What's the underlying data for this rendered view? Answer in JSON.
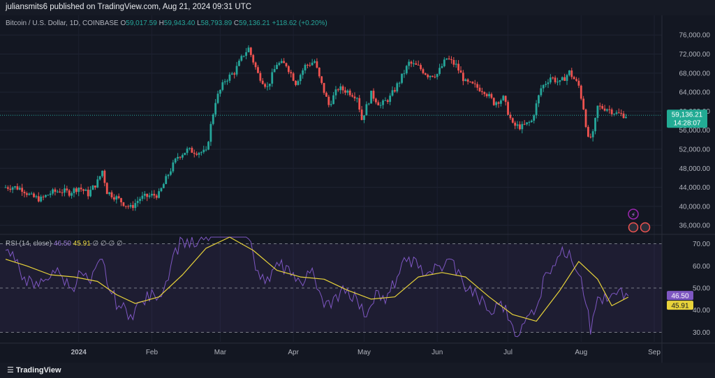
{
  "header": {
    "published": "juliansmits6 published on TradingView.com, Aug 21, 2024 09:31 UTC"
  },
  "legend": {
    "symbol": "Bitcoin / U.S. Dollar, 1D, COINBASE",
    "o_label": "O",
    "o": "59,017.59",
    "h_label": "H",
    "h": "59,943.40",
    "l_label": "L",
    "l": "58,793.89",
    "c_label": "C",
    "c": "59,136.21",
    "change": "+118.62 (+0.20%)"
  },
  "rsi_legend": {
    "name": "RSI (14, close)",
    "rsi": "46.50",
    "ma": "45.91",
    "extras": "∅ ∅ ∅ ∅"
  },
  "price_tag": {
    "value": "59,136.21",
    "countdown": "14:28:07"
  },
  "rsi_tags": {
    "rsi": "46.50",
    "ma": "45.91"
  },
  "footer": {
    "brand": "TradingView"
  },
  "colors": {
    "up": "#26a69a",
    "down": "#ef5350",
    "rsi": "#7e57c2",
    "rsi_ma": "#e8d33a",
    "bg": "#131722"
  },
  "chart_data": [
    {
      "type": "candlestick",
      "title": "Bitcoin / U.S. Dollar, 1D, COINBASE",
      "x_ticks": [
        "2024",
        "Feb",
        "Mar",
        "Apr",
        "May",
        "Jun",
        "Jul",
        "Aug",
        "Sep"
      ],
      "y_ticks": [
        "36,000.00",
        "40,000.00",
        "44,000.00",
        "48,000.00",
        "52,000.00",
        "56,000.00",
        "60,000.00",
        "64,000.00",
        "68,000.00",
        "72,000.00",
        "76,000.00"
      ],
      "ylim": [
        35000,
        77500
      ],
      "last_close": 59136.21,
      "close_series": [
        {
          "date": "2023-12-01",
          "close": 44000
        },
        {
          "date": "2023-12-05",
          "close": 44100
        },
        {
          "date": "2023-12-09",
          "close": 43700
        },
        {
          "date": "2023-12-13",
          "close": 42000
        },
        {
          "date": "2023-12-17",
          "close": 41500
        },
        {
          "date": "2023-12-21",
          "close": 42800
        },
        {
          "date": "2023-12-25",
          "close": 43300
        },
        {
          "date": "2023-12-29",
          "close": 42900
        },
        {
          "date": "2024-01-02",
          "close": 44000
        },
        {
          "date": "2024-01-06",
          "close": 42600
        },
        {
          "date": "2024-01-10",
          "close": 45200
        },
        {
          "date": "2024-01-12",
          "close": 47500
        },
        {
          "date": "2024-01-14",
          "close": 43100
        },
        {
          "date": "2024-01-18",
          "close": 41800
        },
        {
          "date": "2024-01-22",
          "close": 40300
        },
        {
          "date": "2024-01-24",
          "close": 39700
        },
        {
          "date": "2024-01-28",
          "close": 41700
        },
        {
          "date": "2024-02-01",
          "close": 42200
        },
        {
          "date": "2024-02-05",
          "close": 42500
        },
        {
          "date": "2024-02-09",
          "close": 46800
        },
        {
          "date": "2024-02-13",
          "close": 50500
        },
        {
          "date": "2024-02-17",
          "close": 51800
        },
        {
          "date": "2024-02-21",
          "close": 51500
        },
        {
          "date": "2024-02-25",
          "close": 51300
        },
        {
          "date": "2024-02-27",
          "close": 57000
        },
        {
          "date": "2024-02-29",
          "close": 62200
        },
        {
          "date": "2024-03-04",
          "close": 66500
        },
        {
          "date": "2024-03-08",
          "close": 68200
        },
        {
          "date": "2024-03-12",
          "close": 72000
        },
        {
          "date": "2024-03-14",
          "close": 73200
        },
        {
          "date": "2024-03-18",
          "close": 67800
        },
        {
          "date": "2024-03-22",
          "close": 65000
        },
        {
          "date": "2024-03-26",
          "close": 70000
        },
        {
          "date": "2024-03-30",
          "close": 69800
        },
        {
          "date": "2024-04-03",
          "close": 66000
        },
        {
          "date": "2024-04-07",
          "close": 69500
        },
        {
          "date": "2024-04-11",
          "close": 70500
        },
        {
          "date": "2024-04-13",
          "close": 67000
        },
        {
          "date": "2024-04-17",
          "close": 61300
        },
        {
          "date": "2024-04-21",
          "close": 64800
        },
        {
          "date": "2024-04-25",
          "close": 64200
        },
        {
          "date": "2024-04-29",
          "close": 63100
        },
        {
          "date": "2024-05-01",
          "close": 58300
        },
        {
          "date": "2024-05-05",
          "close": 63600
        },
        {
          "date": "2024-05-09",
          "close": 61200
        },
        {
          "date": "2024-05-13",
          "close": 62900
        },
        {
          "date": "2024-05-17",
          "close": 66300
        },
        {
          "date": "2024-05-21",
          "close": 70100
        },
        {
          "date": "2024-05-25",
          "close": 69300
        },
        {
          "date": "2024-05-29",
          "close": 67600
        },
        {
          "date": "2024-06-02",
          "close": 67800
        },
        {
          "date": "2024-06-06",
          "close": 71100
        },
        {
          "date": "2024-06-10",
          "close": 69600
        },
        {
          "date": "2024-06-14",
          "close": 66000
        },
        {
          "date": "2024-06-18",
          "close": 65200
        },
        {
          "date": "2024-06-22",
          "close": 64300
        },
        {
          "date": "2024-06-26",
          "close": 61800
        },
        {
          "date": "2024-06-30",
          "close": 62700
        },
        {
          "date": "2024-07-04",
          "close": 57000
        },
        {
          "date": "2024-07-08",
          "close": 56700
        },
        {
          "date": "2024-07-12",
          "close": 57900
        },
        {
          "date": "2024-07-16",
          "close": 64800
        },
        {
          "date": "2024-07-20",
          "close": 67200
        },
        {
          "date": "2024-07-24",
          "close": 65900
        },
        {
          "date": "2024-07-28",
          "close": 68200
        },
        {
          "date": "2024-08-01",
          "close": 65300
        },
        {
          "date": "2024-08-03",
          "close": 60700
        },
        {
          "date": "2024-08-05",
          "close": 54000
        },
        {
          "date": "2024-08-07",
          "close": 55100
        },
        {
          "date": "2024-08-09",
          "close": 60900
        },
        {
          "date": "2024-08-13",
          "close": 60600
        },
        {
          "date": "2024-08-17",
          "close": 59500
        },
        {
          "date": "2024-08-21",
          "close": 59136
        }
      ]
    },
    {
      "type": "line",
      "title": "RSI (14, close)",
      "y_ticks": [
        "30.00",
        "40.00",
        "50.00",
        "60.00",
        "70.00"
      ],
      "ylim": [
        27,
        73
      ],
      "bands": [
        30,
        50,
        70
      ],
      "series": [
        {
          "name": "RSI",
          "values": [
            {
              "date": "2023-12-01",
              "v": 67
            },
            {
              "date": "2023-12-05",
              "v": 62
            },
            {
              "date": "2023-12-09",
              "v": 55
            },
            {
              "date": "2023-12-13",
              "v": 50
            },
            {
              "date": "2023-12-17",
              "v": 53
            },
            {
              "date": "2023-12-21",
              "v": 58
            },
            {
              "date": "2023-12-25",
              "v": 55
            },
            {
              "date": "2023-12-29",
              "v": 50
            },
            {
              "date": "2024-01-02",
              "v": 57
            },
            {
              "date": "2024-01-06",
              "v": 52
            },
            {
              "date": "2024-01-11",
              "v": 63
            },
            {
              "date": "2024-01-14",
              "v": 49
            },
            {
              "date": "2024-01-18",
              "v": 42
            },
            {
              "date": "2024-01-23",
              "v": 38
            },
            {
              "date": "2024-01-28",
              "v": 44
            },
            {
              "date": "2024-02-02",
              "v": 47
            },
            {
              "date": "2024-02-06",
              "v": 49
            },
            {
              "date": "2024-02-10",
              "v": 65
            },
            {
              "date": "2024-02-14",
              "v": 72
            },
            {
              "date": "2024-02-20",
              "v": 69
            },
            {
              "date": "2024-02-26",
              "v": 74
            },
            {
              "date": "2024-03-05",
              "v": 78
            },
            {
              "date": "2024-03-12",
              "v": 80
            },
            {
              "date": "2024-03-16",
              "v": 58
            },
            {
              "date": "2024-03-20",
              "v": 52
            },
            {
              "date": "2024-03-26",
              "v": 60
            },
            {
              "date": "2024-04-01",
              "v": 57
            },
            {
              "date": "2024-04-05",
              "v": 51
            },
            {
              "date": "2024-04-09",
              "v": 59
            },
            {
              "date": "2024-04-13",
              "v": 46
            },
            {
              "date": "2024-04-17",
              "v": 41
            },
            {
              "date": "2024-04-22",
              "v": 51
            },
            {
              "date": "2024-04-28",
              "v": 45
            },
            {
              "date": "2024-05-01",
              "v": 37
            },
            {
              "date": "2024-05-06",
              "v": 49
            },
            {
              "date": "2024-05-10",
              "v": 43
            },
            {
              "date": "2024-05-15",
              "v": 55
            },
            {
              "date": "2024-05-20",
              "v": 64
            },
            {
              "date": "2024-05-24",
              "v": 59
            },
            {
              "date": "2024-05-28",
              "v": 57
            },
            {
              "date": "2024-06-04",
              "v": 60
            },
            {
              "date": "2024-06-07",
              "v": 63
            },
            {
              "date": "2024-06-12",
              "v": 52
            },
            {
              "date": "2024-06-18",
              "v": 46
            },
            {
              "date": "2024-06-24",
              "v": 38
            },
            {
              "date": "2024-06-28",
              "v": 44
            },
            {
              "date": "2024-07-03",
              "v": 33
            },
            {
              "date": "2024-07-06",
              "v": 29
            },
            {
              "date": "2024-07-10",
              "v": 38
            },
            {
              "date": "2024-07-14",
              "v": 44
            },
            {
              "date": "2024-07-17",
              "v": 57
            },
            {
              "date": "2024-07-22",
              "v": 64
            },
            {
              "date": "2024-07-27",
              "v": 67
            },
            {
              "date": "2024-08-01",
              "v": 55
            },
            {
              "date": "2024-08-04",
              "v": 40
            },
            {
              "date": "2024-08-05",
              "v": 29
            },
            {
              "date": "2024-08-08",
              "v": 46
            },
            {
              "date": "2024-08-12",
              "v": 44
            },
            {
              "date": "2024-08-16",
              "v": 47
            },
            {
              "date": "2024-08-21",
              "v": 46.5
            }
          ]
        },
        {
          "name": "RSI-based MA",
          "values": [
            {
              "date": "2023-12-01",
              "v": 63
            },
            {
              "date": "2023-12-10",
              "v": 60
            },
            {
              "date": "2023-12-20",
              "v": 56
            },
            {
              "date": "2023-12-30",
              "v": 55
            },
            {
              "date": "2024-01-09",
              "v": 53
            },
            {
              "date": "2024-01-17",
              "v": 47
            },
            {
              "date": "2024-01-25",
              "v": 43
            },
            {
              "date": "2024-02-04",
              "v": 46
            },
            {
              "date": "2024-02-14",
              "v": 56
            },
            {
              "date": "2024-02-24",
              "v": 68
            },
            {
              "date": "2024-03-05",
              "v": 73
            },
            {
              "date": "2024-03-15",
              "v": 67
            },
            {
              "date": "2024-03-25",
              "v": 58
            },
            {
              "date": "2024-04-04",
              "v": 55
            },
            {
              "date": "2024-04-14",
              "v": 54
            },
            {
              "date": "2024-04-24",
              "v": 49
            },
            {
              "date": "2024-05-04",
              "v": 45
            },
            {
              "date": "2024-05-14",
              "v": 46
            },
            {
              "date": "2024-05-24",
              "v": 55
            },
            {
              "date": "2024-06-03",
              "v": 57
            },
            {
              "date": "2024-06-13",
              "v": 55
            },
            {
              "date": "2024-06-23",
              "v": 46
            },
            {
              "date": "2024-07-03",
              "v": 38
            },
            {
              "date": "2024-07-13",
              "v": 35
            },
            {
              "date": "2024-07-23",
              "v": 49
            },
            {
              "date": "2024-07-31",
              "v": 62
            },
            {
              "date": "2024-08-08",
              "v": 54
            },
            {
              "date": "2024-08-14",
              "v": 42
            },
            {
              "date": "2024-08-21",
              "v": 45.91
            }
          ]
        }
      ]
    }
  ]
}
